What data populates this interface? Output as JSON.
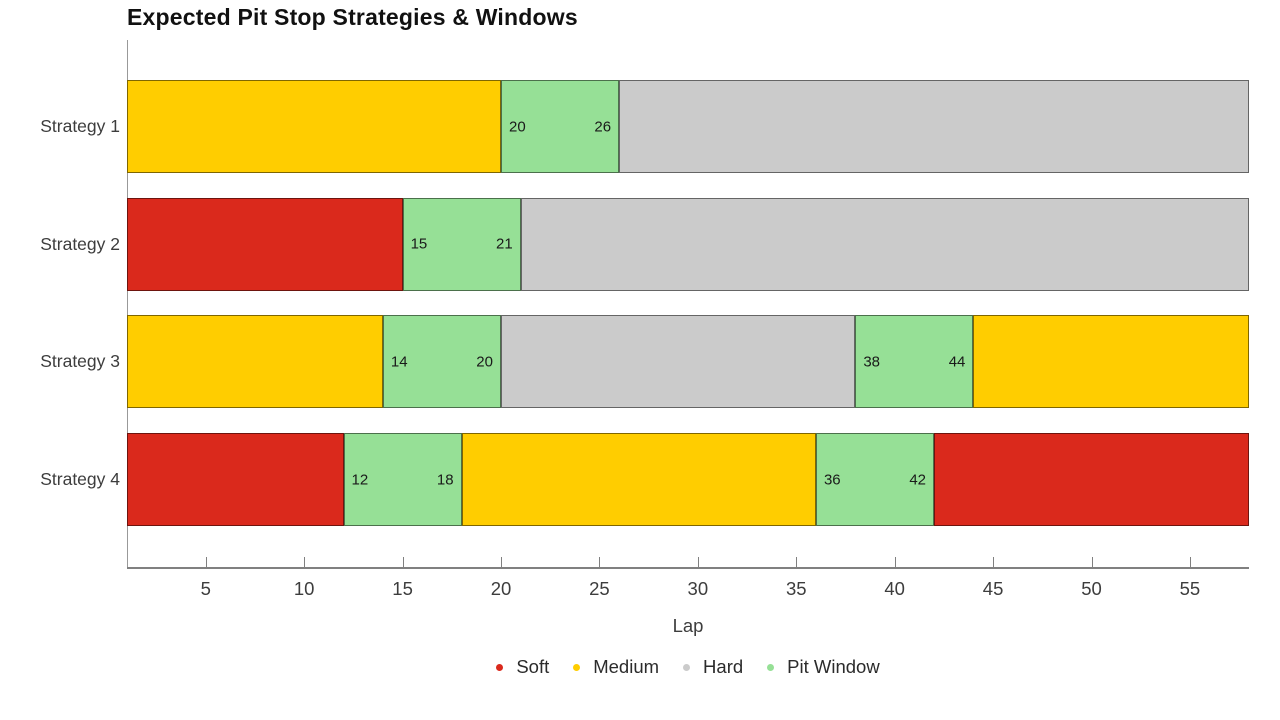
{
  "title": "Expected Pit Stop Strategies & Windows",
  "chart_data": {
    "type": "bar",
    "orientation": "horizontal",
    "title": "Expected Pit Stop Strategies & Windows",
    "xlabel": "Lap",
    "xlim": [
      1,
      58
    ],
    "xticks": [
      5,
      10,
      15,
      20,
      25,
      30,
      35,
      40,
      45,
      50,
      55
    ],
    "categories": [
      "Strategy 1",
      "Strategy 2",
      "Strategy 3",
      "Strategy 4"
    ],
    "legend": [
      {
        "label": "Soft",
        "color_key": "soft"
      },
      {
        "label": "Medium",
        "color_key": "medium"
      },
      {
        "label": "Hard",
        "color_key": "hard"
      },
      {
        "label": "Pit Window",
        "color_key": "pit_window"
      }
    ],
    "colors": {
      "soft": "#DA291C",
      "medium": "#FFCD00",
      "hard": "#CBCBCB",
      "pit_window": "#96E096"
    },
    "rows": [
      {
        "label": "Strategy 1",
        "segments": [
          {
            "compound": "medium",
            "start": 1,
            "end": 20,
            "show_labels": false
          },
          {
            "compound": "pit_window",
            "start": 20,
            "end": 26,
            "show_labels": true
          },
          {
            "compound": "hard",
            "start": 26,
            "end": 58,
            "show_labels": false
          }
        ]
      },
      {
        "label": "Strategy 2",
        "segments": [
          {
            "compound": "soft",
            "start": 1,
            "end": 15,
            "show_labels": false
          },
          {
            "compound": "pit_window",
            "start": 15,
            "end": 21,
            "show_labels": true
          },
          {
            "compound": "hard",
            "start": 21,
            "end": 58,
            "show_labels": false
          }
        ]
      },
      {
        "label": "Strategy 3",
        "segments": [
          {
            "compound": "medium",
            "start": 1,
            "end": 14,
            "show_labels": false
          },
          {
            "compound": "pit_window",
            "start": 14,
            "end": 20,
            "show_labels": true
          },
          {
            "compound": "hard",
            "start": 20,
            "end": 38,
            "show_labels": false
          },
          {
            "compound": "pit_window",
            "start": 38,
            "end": 44,
            "show_labels": true
          },
          {
            "compound": "medium",
            "start": 44,
            "end": 58,
            "show_labels": false
          }
        ]
      },
      {
        "label": "Strategy 4",
        "segments": [
          {
            "compound": "soft",
            "start": 1,
            "end": 12,
            "show_labels": false
          },
          {
            "compound": "pit_window",
            "start": 12,
            "end": 18,
            "show_labels": true
          },
          {
            "compound": "medium",
            "start": 18,
            "end": 36,
            "show_labels": false
          },
          {
            "compound": "pit_window",
            "start": 36,
            "end": 42,
            "show_labels": true
          },
          {
            "compound": "soft",
            "start": 42,
            "end": 58,
            "show_labels": false
          }
        ]
      }
    ]
  }
}
